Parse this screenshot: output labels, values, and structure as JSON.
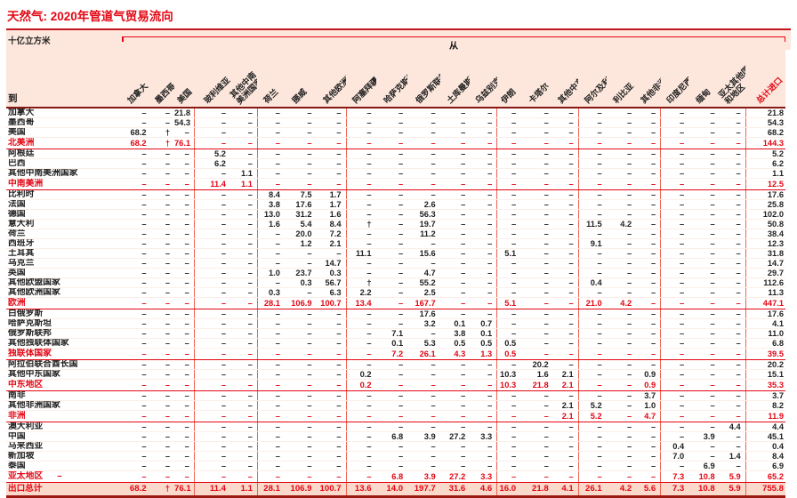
{
  "title": "天然气: 2020年管道气贸易流向",
  "unit": "十亿立方米",
  "from_label": "从",
  "to_label": "到",
  "colors": {
    "accent_red": "#e30613",
    "band_pink": "#fde7dc",
    "grand_row_pink": "#fbd9cb",
    "dark_rule": "#9a1a12",
    "group_line": "#ef6352"
  },
  "group_starts": [
    3,
    5,
    8,
    13,
    16,
    19,
    22
  ],
  "columns": [
    "加拿大",
    "墨西哥",
    "美国",
    "玻利维亚",
    "其他中南\n美洲国家",
    "荷兰",
    "挪威",
    "其他欧洲国家",
    "阿塞拜疆",
    "哈萨克斯坦",
    "俄罗斯联邦",
    "土库曼斯坦",
    "乌兹别克斯坦",
    "伊朗",
    "卡塔尔",
    "其他中东国家",
    "阿尔及利亚",
    "利比亚",
    "其他非洲国家",
    "印度尼西亚",
    "缅甸",
    "亚太其他国家\n和地区",
    "总计进口"
  ],
  "rows": [
    {
      "label": "加拿大",
      "type": "country",
      "values": [
        "–",
        "–",
        "21.8",
        "–",
        "–",
        "–",
        "–",
        "–",
        "–",
        "–",
        "–",
        "–",
        "–",
        "–",
        "–",
        "–",
        "–",
        "–",
        "–",
        "–",
        "–",
        "–",
        "21.8"
      ]
    },
    {
      "label": "墨西哥",
      "type": "country",
      "values": [
        "–",
        "–",
        "54.3",
        "–",
        "–",
        "–",
        "–",
        "–",
        "–",
        "–",
        "–",
        "–",
        "–",
        "–",
        "–",
        "–",
        "–",
        "–",
        "–",
        "–",
        "–",
        "–",
        "54.3"
      ]
    },
    {
      "label": "美国",
      "type": "country",
      "values": [
        "68.2",
        "†",
        "–",
        "–",
        "–",
        "–",
        "–",
        "–",
        "–",
        "–",
        "–",
        "–",
        "–",
        "–",
        "–",
        "–",
        "–",
        "–",
        "–",
        "–",
        "–",
        "–",
        "68.2"
      ]
    },
    {
      "label": "北美洲",
      "type": "region",
      "values": [
        "68.2",
        "†",
        "76.1",
        "–",
        "–",
        "–",
        "–",
        "–",
        "–",
        "–",
        "–",
        "–",
        "–",
        "–",
        "–",
        "–",
        "–",
        "–",
        "–",
        "–",
        "–",
        "–",
        "144.3"
      ]
    },
    {
      "label": "阿根廷",
      "type": "country",
      "values": [
        "–",
        "–",
        "–",
        "5.2",
        "–",
        "–",
        "–",
        "–",
        "–",
        "–",
        "–",
        "–",
        "–",
        "–",
        "–",
        "–",
        "–",
        "–",
        "–",
        "–",
        "–",
        "–",
        "5.2"
      ]
    },
    {
      "label": "巴西",
      "type": "country",
      "values": [
        "–",
        "–",
        "–",
        "6.2",
        "–",
        "–",
        "–",
        "–",
        "–",
        "–",
        "–",
        "–",
        "–",
        "–",
        "–",
        "–",
        "–",
        "–",
        "–",
        "–",
        "–",
        "–",
        "6.2"
      ]
    },
    {
      "label": "其他中南美洲国家",
      "type": "country",
      "values": [
        "–",
        "–",
        "–",
        "–",
        "1.1",
        "–",
        "–",
        "–",
        "–",
        "–",
        "–",
        "–",
        "–",
        "–",
        "–",
        "–",
        "–",
        "–",
        "–",
        "–",
        "–",
        "–",
        "1.1"
      ]
    },
    {
      "label": "中南美洲",
      "type": "region",
      "values": [
        "–",
        "–",
        "–",
        "11.4",
        "1.1",
        "–",
        "–",
        "–",
        "–",
        "–",
        "–",
        "–",
        "–",
        "–",
        "–",
        "–",
        "–",
        "–",
        "–",
        "–",
        "–",
        "–",
        "12.5"
      ]
    },
    {
      "label": "比利时",
      "type": "country",
      "values": [
        "–",
        "–",
        "–",
        "–",
        "–",
        "8.4",
        "7.5",
        "1.7",
        "–",
        "–",
        "–",
        "–",
        "–",
        "–",
        "–",
        "–",
        "–",
        "–",
        "–",
        "–",
        "–",
        "–",
        "17.6"
      ]
    },
    {
      "label": "法国",
      "type": "country",
      "values": [
        "–",
        "–",
        "–",
        "–",
        "–",
        "3.8",
        "17.6",
        "1.7",
        "–",
        "–",
        "2.6",
        "–",
        "–",
        "–",
        "–",
        "–",
        "–",
        "–",
        "–",
        "–",
        "–",
        "–",
        "25.8"
      ]
    },
    {
      "label": "德国",
      "type": "country",
      "values": [
        "–",
        "–",
        "–",
        "–",
        "–",
        "13.0",
        "31.2",
        "1.6",
        "–",
        "–",
        "56.3",
        "–",
        "–",
        "–",
        "–",
        "–",
        "–",
        "–",
        "–",
        "–",
        "–",
        "–",
        "102.0"
      ]
    },
    {
      "label": "意大利",
      "type": "country",
      "values": [
        "–",
        "–",
        "–",
        "–",
        "–",
        "1.6",
        "5.4",
        "8.4",
        "†",
        "–",
        "19.7",
        "–",
        "–",
        "–",
        "–",
        "–",
        "11.5",
        "4.2",
        "–",
        "–",
        "–",
        "–",
        "50.8"
      ]
    },
    {
      "label": "荷兰",
      "type": "country",
      "values": [
        "–",
        "–",
        "–",
        "–",
        "–",
        "–",
        "20.0",
        "7.2",
        "–",
        "–",
        "11.2",
        "–",
        "–",
        "–",
        "–",
        "–",
        "–",
        "–",
        "–",
        "–",
        "–",
        "–",
        "38.4"
      ]
    },
    {
      "label": "西班牙",
      "type": "country",
      "values": [
        "–",
        "–",
        "–",
        "–",
        "–",
        "–",
        "1.2",
        "2.1",
        "–",
        "–",
        "–",
        "–",
        "–",
        "–",
        "–",
        "–",
        "9.1",
        "–",
        "–",
        "–",
        "–",
        "–",
        "12.3"
      ]
    },
    {
      "label": "土耳其",
      "type": "country",
      "values": [
        "–",
        "–",
        "–",
        "–",
        "–",
        "–",
        "–",
        "–",
        "11.1",
        "–",
        "15.6",
        "–",
        "–",
        "5.1",
        "–",
        "–",
        "–",
        "–",
        "–",
        "–",
        "–",
        "–",
        "31.8"
      ]
    },
    {
      "label": "乌克兰",
      "type": "country",
      "values": [
        "–",
        "–",
        "–",
        "–",
        "–",
        "–",
        "–",
        "14.7",
        "–",
        "–",
        "–",
        "–",
        "–",
        "–",
        "–",
        "–",
        "–",
        "–",
        "–",
        "–",
        "–",
        "–",
        "14.7"
      ]
    },
    {
      "label": "英国",
      "type": "country",
      "values": [
        "–",
        "–",
        "–",
        "–",
        "–",
        "1.0",
        "23.7",
        "0.3",
        "–",
        "–",
        "4.7",
        "–",
        "–",
        "–",
        "–",
        "–",
        "–",
        "–",
        "–",
        "–",
        "–",
        "–",
        "29.7"
      ]
    },
    {
      "label": "其他欧盟国家",
      "type": "country",
      "values": [
        "–",
        "–",
        "–",
        "–",
        "–",
        "–",
        "0.3",
        "56.7",
        "†",
        "–",
        "55.2",
        "–",
        "–",
        "–",
        "–",
        "–",
        "0.4",
        "–",
        "–",
        "–",
        "–",
        "–",
        "112.6"
      ]
    },
    {
      "label": "其他欧洲国家",
      "type": "country",
      "values": [
        "–",
        "–",
        "–",
        "–",
        "–",
        "0.3",
        "–",
        "6.3",
        "2.2",
        "–",
        "2.5",
        "–",
        "–",
        "–",
        "–",
        "–",
        "–",
        "–",
        "–",
        "–",
        "–",
        "–",
        "11.3"
      ]
    },
    {
      "label": "欧洲",
      "type": "region",
      "values": [
        "–",
        "–",
        "–",
        "–",
        "–",
        "28.1",
        "106.9",
        "100.7",
        "13.4",
        "–",
        "167.7",
        "–",
        "–",
        "5.1",
        "–",
        "–",
        "21.0",
        "4.2",
        "–",
        "–",
        "–",
        "–",
        "447.1"
      ]
    },
    {
      "label": "白俄罗斯",
      "type": "country",
      "values": [
        "–",
        "–",
        "–",
        "–",
        "–",
        "–",
        "–",
        "–",
        "–",
        "–",
        "17.6",
        "–",
        "–",
        "–",
        "–",
        "–",
        "–",
        "–",
        "–",
        "–",
        "–",
        "–",
        "17.6"
      ]
    },
    {
      "label": "哈萨克斯坦",
      "type": "country",
      "values": [
        "–",
        "–",
        "–",
        "–",
        "–",
        "–",
        "–",
        "–",
        "–",
        "–",
        "3.2",
        "0.1",
        "0.7",
        "–",
        "–",
        "–",
        "–",
        "–",
        "–",
        "–",
        "–",
        "–",
        "4.1"
      ]
    },
    {
      "label": "俄罗斯联邦",
      "type": "country",
      "values": [
        "–",
        "–",
        "–",
        "–",
        "–",
        "–",
        "–",
        "–",
        "–",
        "7.1",
        "–",
        "3.8",
        "0.1",
        "–",
        "–",
        "–",
        "–",
        "–",
        "–",
        "–",
        "–",
        "–",
        "11.0"
      ]
    },
    {
      "label": "其他独联体国家",
      "type": "country",
      "values": [
        "–",
        "–",
        "–",
        "–",
        "–",
        "–",
        "–",
        "–",
        "–",
        "0.1",
        "5.3",
        "0.5",
        "0.5",
        "0.5",
        "–",
        "–",
        "–",
        "–",
        "–",
        "–",
        "–",
        "–",
        "6.8"
      ]
    },
    {
      "label": "独联体国家",
      "type": "region",
      "values": [
        "–",
        "–",
        "–",
        "–",
        "–",
        "–",
        "–",
        "–",
        "–",
        "7.2",
        "26.1",
        "4.3",
        "1.3",
        "0.5",
        "–",
        "–",
        "–",
        "–",
        "–",
        "–",
        "–",
        "–",
        "39.5"
      ]
    },
    {
      "label": "阿拉伯联合酋长国",
      "type": "country",
      "values": [
        "–",
        "–",
        "–",
        "–",
        "–",
        "–",
        "–",
        "–",
        "–",
        "–",
        "–",
        "–",
        "–",
        "–",
        "20.2",
        "–",
        "–",
        "–",
        "–",
        "–",
        "–",
        "–",
        "20.2"
      ]
    },
    {
      "label": "其他中东国家",
      "type": "country",
      "values": [
        "–",
        "–",
        "–",
        "–",
        "–",
        "–",
        "–",
        "–",
        "0.2",
        "–",
        "–",
        "–",
        "–",
        "10.3",
        "1.6",
        "2.1",
        "–",
        "–",
        "0.9",
        "–",
        "–",
        "–",
        "15.1"
      ]
    },
    {
      "label": "中东地区",
      "type": "region",
      "values": [
        "–",
        "–",
        "–",
        "–",
        "–",
        "–",
        "–",
        "–",
        "0.2",
        "–",
        "–",
        "–",
        "–",
        "10.3",
        "21.8",
        "2.1",
        "–",
        "–",
        "0.9",
        "–",
        "–",
        "–",
        "35.3"
      ]
    },
    {
      "label": "南非",
      "type": "country",
      "values": [
        "–",
        "–",
        "–",
        "–",
        "–",
        "–",
        "–",
        "–",
        "–",
        "–",
        "–",
        "–",
        "–",
        "–",
        "–",
        "–",
        "–",
        "–",
        "3.7",
        "–",
        "–",
        "–",
        "3.7"
      ]
    },
    {
      "label": "其他非洲国家",
      "type": "country",
      "values": [
        "–",
        "–",
        "–",
        "–",
        "–",
        "–",
        "–",
        "–",
        "–",
        "–",
        "–",
        "–",
        "–",
        "–",
        "–",
        "2.1",
        "5.2",
        "–",
        "1.0",
        "–",
        "–",
        "–",
        "8.2"
      ]
    },
    {
      "label": "非洲",
      "type": "region",
      "values": [
        "–",
        "–",
        "–",
        "–",
        "–",
        "–",
        "–",
        "–",
        "–",
        "–",
        "–",
        "–",
        "–",
        "–",
        "–",
        "2.1",
        "5.2",
        "–",
        "4.7",
        "–",
        "–",
        "–",
        "11.9"
      ]
    },
    {
      "label": "澳大利亚",
      "type": "country",
      "values": [
        "–",
        "–",
        "–",
        "–",
        "–",
        "–",
        "–",
        "–",
        "–",
        "–",
        "–",
        "–",
        "–",
        "–",
        "–",
        "–",
        "–",
        "–",
        "–",
        "–",
        "–",
        "4.4",
        "4.4"
      ]
    },
    {
      "label": "中国",
      "type": "country",
      "values": [
        "–",
        "–",
        "–",
        "–",
        "–",
        "–",
        "–",
        "–",
        "–",
        "6.8",
        "3.9",
        "27.2",
        "3.3",
        "–",
        "–",
        "–",
        "–",
        "–",
        "–",
        "–",
        "3.9",
        "–",
        "45.1"
      ]
    },
    {
      "label": "马来西亚",
      "type": "country",
      "values": [
        "–",
        "–",
        "–",
        "–",
        "–",
        "–",
        "–",
        "–",
        "–",
        "–",
        "–",
        "–",
        "–",
        "–",
        "–",
        "–",
        "–",
        "–",
        "–",
        "0.4",
        "–",
        "–",
        "0.4"
      ]
    },
    {
      "label": "新加坡",
      "type": "country",
      "values": [
        "–",
        "–",
        "–",
        "–",
        "–",
        "–",
        "–",
        "–",
        "–",
        "–",
        "–",
        "–",
        "–",
        "–",
        "–",
        "–",
        "–",
        "–",
        "–",
        "7.0",
        "–",
        "1.4",
        "8.4"
      ]
    },
    {
      "label": "泰国",
      "type": "country",
      "values": [
        "–",
        "–",
        "–",
        "–",
        "–",
        "–",
        "–",
        "–",
        "–",
        "–",
        "–",
        "–",
        "–",
        "–",
        "–",
        "–",
        "–",
        "–",
        "–",
        "–",
        "6.9",
        "–",
        "6.9"
      ]
    },
    {
      "label": "亚太地区",
      "type": "region",
      "note": "–",
      "values": [
        "–",
        "–",
        "–",
        "–",
        "–",
        "–",
        "–",
        "–",
        "–",
        "6.8",
        "3.9",
        "27.2",
        "3.3",
        "–",
        "–",
        "–",
        "–",
        "–",
        "–",
        "7.3",
        "10.8",
        "5.9",
        "65.2"
      ]
    },
    {
      "label": "出口总计",
      "type": "grand",
      "values": [
        "68.2",
        "†",
        "76.1",
        "11.4",
        "1.1",
        "28.1",
        "106.9",
        "100.7",
        "13.6",
        "14.0",
        "197.7",
        "31.6",
        "4.6",
        "16.0",
        "21.8",
        "4.1",
        "26.1",
        "4.2",
        "5.6",
        "7.3",
        "10.8",
        "5.9",
        "755.8"
      ]
    }
  ]
}
